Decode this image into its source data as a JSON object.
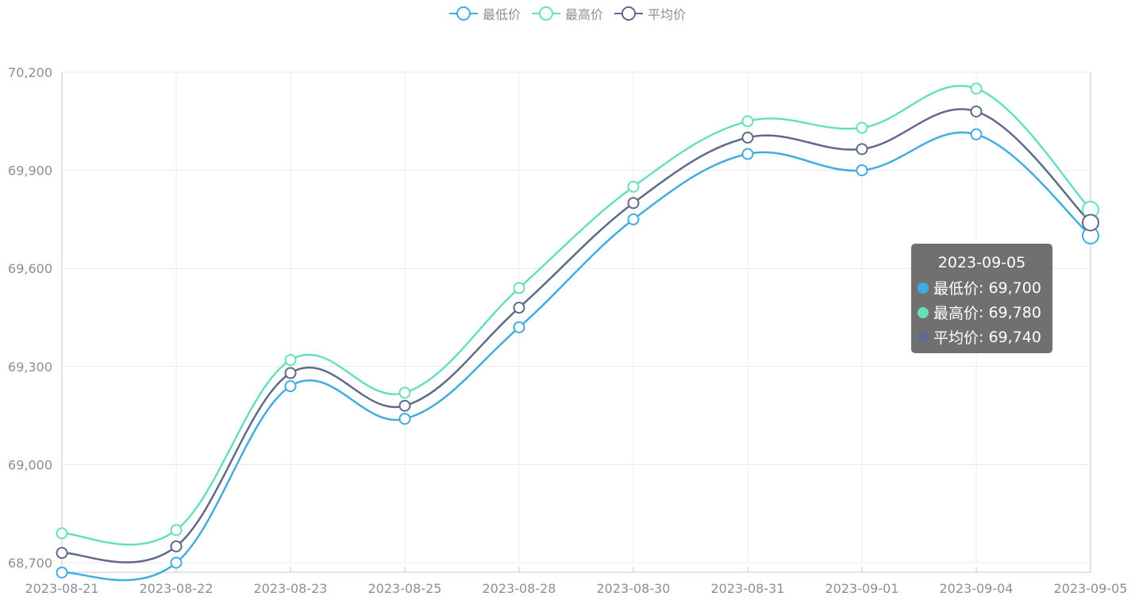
{
  "chart_data": {
    "type": "line",
    "title": "",
    "xlabel": "",
    "ylabel": "",
    "categories": [
      "2023-08-21",
      "2023-08-22",
      "2023-08-23",
      "2023-08-25",
      "2023-08-28",
      "2023-08-30",
      "2023-08-31",
      "2023-09-01",
      "2023-09-04",
      "2023-09-05"
    ],
    "series": [
      {
        "name": "最低价",
        "color": "#40ade0",
        "values": [
          68670,
          68700,
          69240,
          69140,
          69420,
          69750,
          69950,
          69900,
          70010,
          69700
        ]
      },
      {
        "name": "最高价",
        "color": "#66e0bb",
        "values": [
          68790,
          68800,
          69320,
          69220,
          69540,
          69850,
          70050,
          70030,
          70150,
          69780
        ]
      },
      {
        "name": "平均价",
        "color": "#5f6a8c",
        "values": [
          68730,
          68750,
          69280,
          69180,
          69480,
          69800,
          70000,
          69965,
          70080,
          69740
        ]
      }
    ],
    "ylim": [
      68700,
      70200
    ],
    "y_ticks": [
      68700,
      69000,
      69300,
      69600,
      69900,
      70200
    ],
    "y_tick_labels": [
      "68,700",
      "69,000",
      "69,300",
      "69,600",
      "69,900",
      "70,200"
    ],
    "grid": true,
    "legend_position": "top-center",
    "smooth": true,
    "highlighted_index": 9
  },
  "tooltip": {
    "title": "2023-09-05",
    "rows": [
      {
        "name": "最低价",
        "value": "69,700",
        "color": "#40ade0"
      },
      {
        "name": "最高价",
        "value": "69,780",
        "color": "#66e0bb"
      },
      {
        "name": "平均价",
        "value": "69,740",
        "color": "#5f6a8c"
      }
    ]
  }
}
